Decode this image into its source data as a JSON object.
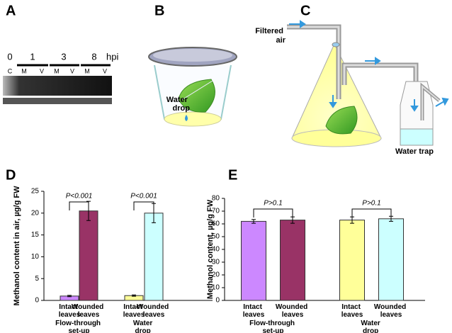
{
  "panels": {
    "A": {
      "letter": "A",
      "timepoints": [
        "0",
        "1",
        "3",
        "8"
      ],
      "unit": "hpi",
      "lanes": [
        "C",
        "M",
        "V",
        "M",
        "V",
        "M",
        "V"
      ]
    },
    "B": {
      "letter": "B",
      "label": "Water drop"
    },
    "C": {
      "letter": "C",
      "inlet_label": "Filtered air",
      "trap_label": "Water trap"
    }
  },
  "chart_data": [
    {
      "type": "bar",
      "panel": "D",
      "y_label": "Methanol content in air, µg/g FW",
      "categories": [
        "Intact leaves",
        "Wounded leaves",
        "Intact leaves",
        "Wounded leaves"
      ],
      "groups": [
        "Flow-through set-up",
        "Water drop set-up"
      ],
      "values": [
        1.0,
        20.5,
        1.1,
        20.0
      ],
      "errors": [
        0.15,
        2.2,
        0.15,
        2.2
      ],
      "colors": [
        "#cc88ff",
        "#993366",
        "#ffff99",
        "#ccffff"
      ],
      "annotations": [
        "P<0.001",
        "P<0.001"
      ],
      "ylim": [
        0,
        25
      ],
      "yticks": [
        0,
        5,
        10,
        15,
        20,
        25
      ]
    },
    {
      "type": "bar",
      "panel": "E",
      "y_label": "Methanol content, µg/g FW",
      "categories": [
        "Intact leaves",
        "Wounded leaves",
        "Intact leaves",
        "Wounded leaves"
      ],
      "groups": [
        "Flow-through set-up",
        "Water drop set-up"
      ],
      "values": [
        62,
        63,
        63,
        64
      ],
      "errors": [
        1.5,
        2.5,
        2.5,
        2
      ],
      "colors": [
        "#cc88ff",
        "#993366",
        "#ffff99",
        "#ccffff"
      ],
      "annotations": [
        "P>0.1",
        "P>0.1"
      ],
      "ylim": [
        0,
        80
      ],
      "yticks": [
        0,
        10,
        20,
        30,
        40,
        50,
        60,
        70,
        80
      ]
    }
  ]
}
